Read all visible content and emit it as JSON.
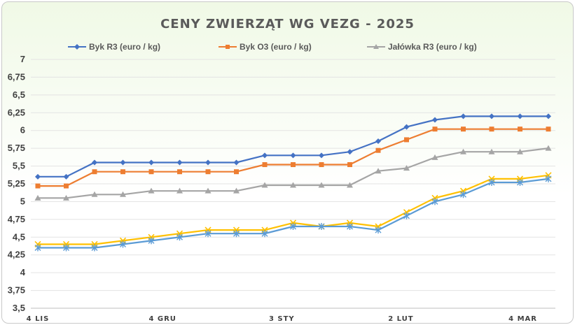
{
  "chart_data": {
    "type": "line",
    "title": "CENY ZWIERZĄT WG VEZG - 2025",
    "ylim": [
      3.5,
      7
    ],
    "y_ticks": [
      "3,5",
      "3,75",
      "4",
      "4,25",
      "4,5",
      "4,75",
      "5",
      "5,25",
      "5,5",
      "5,75",
      "6",
      "6,25",
      "6,5",
      "6,75",
      "7"
    ],
    "x_ticks": [
      {
        "label": "4 LIS",
        "index": 0
      },
      {
        "label": "4 GRU",
        "index": 4.4
      },
      {
        "label": "3 STY",
        "index": 8.6
      },
      {
        "label": "2 LUT",
        "index": 12.8
      },
      {
        "label": "4 MAR",
        "index": 17.1
      }
    ],
    "legend_position": "top",
    "grid": true,
    "x": [
      "1",
      "2",
      "3",
      "4",
      "5",
      "6",
      "7",
      "8",
      "9",
      "10",
      "11",
      "12",
      "13",
      "14",
      "15",
      "16",
      "17",
      "18",
      "19"
    ],
    "series": [
      {
        "name": "Byk R3 (euro / kg)",
        "color": "#4472c4",
        "marker": "diamond",
        "values": [
          5.35,
          5.35,
          5.55,
          5.55,
          5.55,
          5.55,
          5.55,
          5.55,
          5.65,
          5.65,
          5.65,
          5.7,
          5.85,
          6.05,
          6.15,
          6.2,
          6.2,
          6.2,
          6.2
        ]
      },
      {
        "name": "Byk O3 (euro / kg)",
        "color": "#ed7d31",
        "marker": "square",
        "values": [
          5.22,
          5.22,
          5.42,
          5.42,
          5.42,
          5.42,
          5.42,
          5.42,
          5.52,
          5.52,
          5.52,
          5.52,
          5.72,
          5.87,
          6.02,
          6.02,
          6.02,
          6.02,
          6.02
        ]
      },
      {
        "name": "Jałówka R3 (euro / kg)",
        "color": "#a5a5a5",
        "marker": "triangle",
        "values": [
          5.05,
          5.05,
          5.1,
          5.1,
          5.15,
          5.15,
          5.15,
          5.15,
          5.23,
          5.23,
          5.23,
          5.23,
          5.43,
          5.47,
          5.62,
          5.7,
          5.7,
          5.7,
          5.75
        ]
      },
      {
        "name": "",
        "color": "#ffc000",
        "marker": "x",
        "values": [
          4.4,
          4.4,
          4.4,
          4.45,
          4.5,
          4.55,
          4.6,
          4.6,
          4.6,
          4.7,
          4.65,
          4.7,
          4.65,
          4.85,
          5.05,
          5.15,
          5.32,
          5.32,
          5.37
        ]
      },
      {
        "name": "",
        "color": "#5b9bd5",
        "marker": "star",
        "values": [
          4.35,
          4.35,
          4.35,
          4.4,
          4.45,
          4.5,
          4.55,
          4.55,
          4.55,
          4.65,
          4.65,
          4.65,
          4.6,
          4.8,
          5.0,
          5.1,
          5.27,
          5.27,
          5.32
        ]
      }
    ]
  }
}
